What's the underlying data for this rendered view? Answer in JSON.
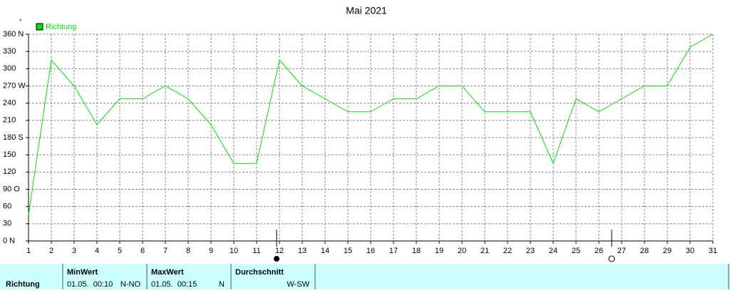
{
  "chart_data": {
    "type": "line",
    "title": "Mai 2021",
    "unit": "°",
    "x": [
      1,
      2,
      3,
      4,
      5,
      6,
      7,
      8,
      9,
      10,
      11,
      12,
      13,
      14,
      15,
      16,
      17,
      18,
      19,
      20,
      21,
      22,
      23,
      24,
      25,
      26,
      27,
      28,
      29,
      30,
      31
    ],
    "series": [
      {
        "name": "Richtung",
        "color": "#00e000",
        "values": [
          45,
          315,
          270,
          202.5,
          247.5,
          247.5,
          270,
          247.5,
          202.5,
          135,
          135,
          315,
          270,
          247.5,
          225,
          225,
          247.5,
          247.5,
          270,
          270,
          225,
          225,
          225,
          135,
          247.5,
          225,
          247.5,
          270,
          270,
          337.5,
          360
        ]
      }
    ],
    "xlim": [
      1,
      31
    ],
    "xticks": [
      1,
      2,
      3,
      4,
      5,
      6,
      7,
      8,
      9,
      10,
      11,
      12,
      13,
      14,
      15,
      16,
      17,
      18,
      19,
      20,
      21,
      22,
      23,
      24,
      25,
      26,
      27,
      28,
      29,
      30,
      31
    ],
    "ylim": [
      0,
      360
    ],
    "yticks": [
      {
        "value": 0,
        "label": "0 N"
      },
      30,
      60,
      {
        "value": 90,
        "label": "90 O"
      },
      120,
      150,
      {
        "value": 180,
        "label": "180 S"
      },
      210,
      240,
      {
        "value": 270,
        "label": "270 W"
      },
      300,
      330,
      {
        "value": 360,
        "label": "360 N"
      }
    ],
    "grid": true
  },
  "summary": {
    "row_label": "Richtung",
    "columns": [
      {
        "header": "MinWert",
        "time": "01.05.  00:10",
        "value": "N-NO"
      },
      {
        "header": "MaxWert",
        "time": "01.05.  00:15",
        "value": "N"
      },
      {
        "header": "Durchschnitt",
        "value": "W-SW"
      }
    ]
  }
}
